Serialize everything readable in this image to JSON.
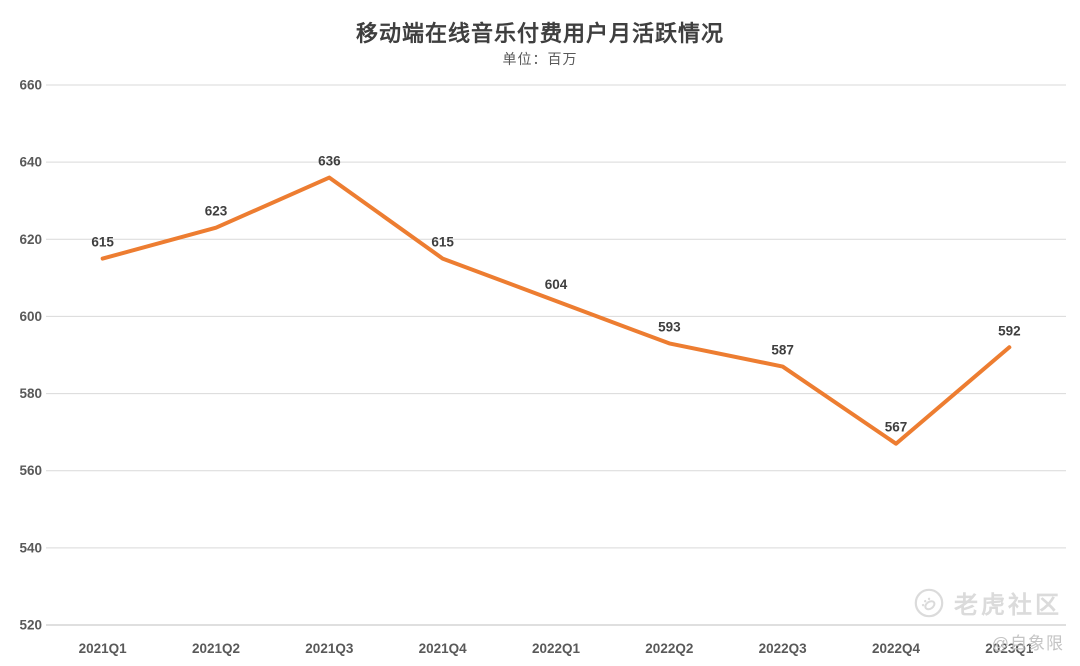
{
  "chart_data": {
    "type": "line",
    "title": "移动端在线音乐付费用户月活跃情况",
    "subtitle": "单位：百万",
    "categories": [
      "2021Q1",
      "2021Q2",
      "2021Q3",
      "2021Q4",
      "2022Q1",
      "2022Q2",
      "2022Q3",
      "2022Q4",
      "2023Q1"
    ],
    "values": [
      615,
      623,
      636,
      615,
      604,
      593,
      587,
      567,
      592
    ],
    "xlabel": "",
    "ylabel": "",
    "ylim": [
      520,
      660
    ],
    "ytick_step": 20,
    "grid": "horizontal",
    "legend_position": "none",
    "show_data_labels": true
  },
  "watermarks": {
    "community": "老虎社区",
    "author": "@自象限"
  },
  "colors": {
    "background": "#FFFFFF",
    "line": "#ED7D31",
    "gridline": "#D9D9D9",
    "axis_line": "#BFBFBF",
    "tick_label": "#595959",
    "data_label": "#3F3F3F",
    "title": "#3F3F3F",
    "subtitle": "#595959",
    "watermark": "#DBDBDB",
    "watermark_author": "#C4C4C4"
  }
}
